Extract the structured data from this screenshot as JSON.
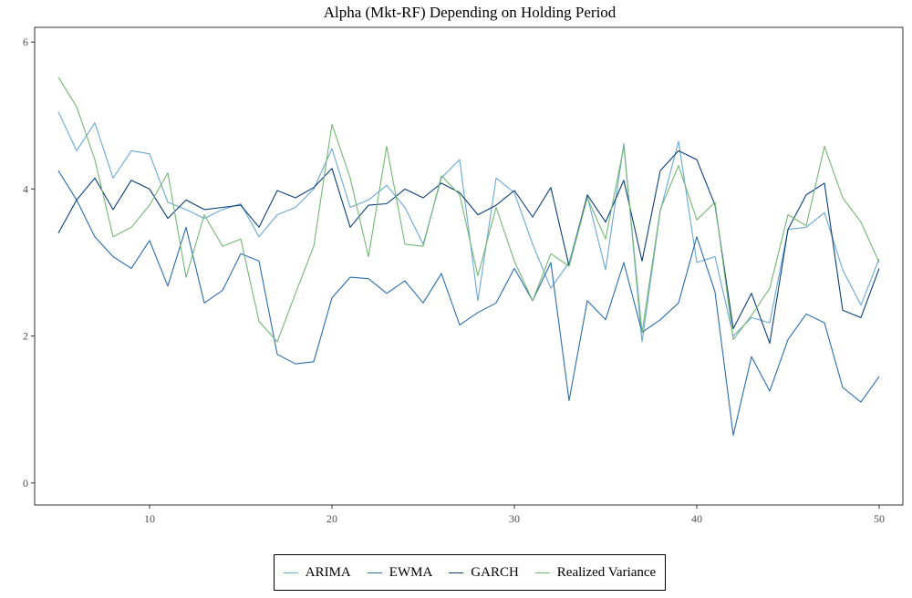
{
  "chart_data": {
    "type": "line",
    "title": "Alpha (Mkt-RF) Depending on Holding Period",
    "xlabel": "",
    "ylabel": "",
    "xlim": [
      3.7,
      51.3
    ],
    "ylim": [
      -0.3,
      6.2
    ],
    "x_ticks": [
      10,
      20,
      30,
      40,
      50
    ],
    "y_ticks": [
      0,
      2,
      4,
      6
    ],
    "grid": false,
    "legend_position": "bottom",
    "x": [
      5,
      6,
      7,
      8,
      9,
      10,
      11,
      12,
      13,
      14,
      15,
      16,
      17,
      18,
      19,
      20,
      21,
      22,
      23,
      24,
      25,
      26,
      27,
      28,
      29,
      30,
      31,
      32,
      33,
      34,
      35,
      36,
      37,
      38,
      39,
      40,
      41,
      42,
      43,
      44,
      45,
      46,
      47,
      48,
      49,
      50
    ],
    "series": [
      {
        "name": "ARIMA",
        "color": "#6aa8d6",
        "values": [
          5.05,
          4.52,
          4.9,
          4.15,
          4.52,
          4.48,
          3.82,
          3.72,
          3.6,
          3.72,
          3.8,
          3.35,
          3.65,
          3.75,
          4.0,
          4.55,
          3.75,
          3.85,
          4.05,
          3.75,
          3.25,
          4.15,
          4.4,
          2.48,
          4.15,
          3.95,
          3.25,
          2.65,
          3.0,
          3.9,
          2.9,
          4.62,
          1.92,
          3.7,
          4.65,
          3.0,
          3.08,
          2.0,
          2.25,
          2.18,
          3.45,
          3.48,
          3.68,
          2.9,
          2.42,
          3.05
        ]
      },
      {
        "name": "EWMA",
        "color": "#2a6db0",
        "values": [
          4.25,
          3.85,
          3.35,
          3.08,
          2.92,
          3.3,
          2.68,
          3.48,
          2.45,
          2.62,
          3.12,
          3.02,
          1.75,
          1.62,
          1.65,
          2.52,
          2.8,
          2.78,
          2.58,
          2.75,
          2.45,
          2.85,
          2.15,
          2.32,
          2.45,
          2.92,
          2.48,
          3.0,
          1.12,
          2.48,
          2.22,
          3.0,
          2.05,
          2.22,
          2.45,
          3.35,
          2.6,
          0.65,
          1.72,
          1.25,
          1.95,
          2.3,
          2.18,
          1.3,
          1.1,
          1.45
        ]
      },
      {
        "name": "GARCH",
        "color": "#0b3f7a",
        "values": [
          3.4,
          3.85,
          4.15,
          3.72,
          4.12,
          4.0,
          3.6,
          3.85,
          3.72,
          3.75,
          3.78,
          3.48,
          3.98,
          3.88,
          4.02,
          4.28,
          3.48,
          3.78,
          3.8,
          4.0,
          3.88,
          4.08,
          3.95,
          3.65,
          3.78,
          3.98,
          3.62,
          4.02,
          2.95,
          3.92,
          3.55,
          4.12,
          3.02,
          4.25,
          4.52,
          4.4,
          3.78,
          2.1,
          2.58,
          1.9,
          3.45,
          3.92,
          4.08,
          2.35,
          2.25,
          2.92
        ]
      },
      {
        "name": "Realized Variance",
        "color": "#74b874",
        "values": [
          5.52,
          5.12,
          4.4,
          3.35,
          3.48,
          3.78,
          4.22,
          2.8,
          3.65,
          3.22,
          3.32,
          2.2,
          1.92,
          2.58,
          3.22,
          4.88,
          4.15,
          3.08,
          4.58,
          3.25,
          3.22,
          4.18,
          3.92,
          2.82,
          3.75,
          3.02,
          2.48,
          3.12,
          2.95,
          3.88,
          3.32,
          4.58,
          2.05,
          3.72,
          4.32,
          3.58,
          3.82,
          1.95,
          2.28,
          2.65,
          3.65,
          3.5,
          4.58,
          3.88,
          3.55,
          3.0
        ]
      }
    ]
  },
  "legend": {
    "items": [
      "ARIMA",
      "EWMA",
      "GARCH",
      "Realized Variance"
    ]
  }
}
